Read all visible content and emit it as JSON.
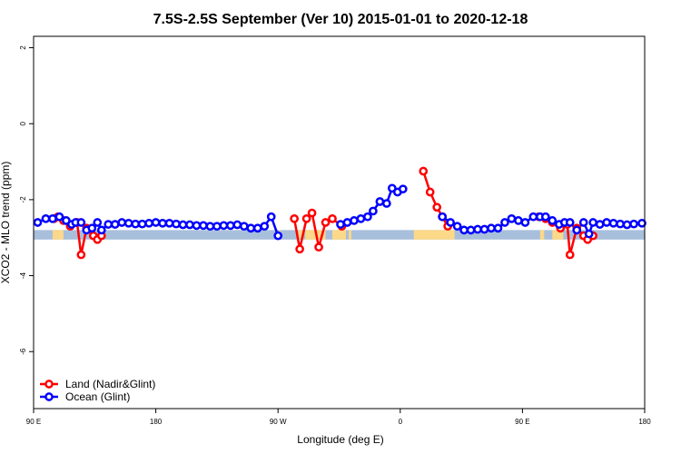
{
  "chart_data": {
    "type": "line",
    "title": "7.5S-2.5S September (Ver 10)   2015-01-01 to 2020-12-18",
    "xlabel": "Longitude (deg E)",
    "ylabel": "XCO2 - MLO trend (ppm)",
    "xlim": [
      90,
      540
    ],
    "ylim": [
      -7.5,
      2.3
    ],
    "x_ticks": [
      {
        "value": 90,
        "label": "90 E"
      },
      {
        "value": 180,
        "label": "180"
      },
      {
        "value": 270,
        "label": "90 W"
      },
      {
        "value": 360,
        "label": "0"
      },
      {
        "value": 450,
        "label": "90 E"
      },
      {
        "value": 540,
        "label": "180"
      }
    ],
    "y_ticks": [
      {
        "value": 2,
        "label": "2"
      },
      {
        "value": 0,
        "label": "0"
      },
      {
        "value": -2,
        "label": "-2"
      },
      {
        "value": -4,
        "label": "-4"
      },
      {
        "value": -6,
        "label": "-6"
      }
    ],
    "grid": false,
    "legend_position": "bottom-left",
    "land_band": {
      "ymin": -3.05,
      "ymax": -2.8,
      "ocean_color": "#a8bfdc",
      "land_color": "#fcd889",
      "land_segments": [
        [
          104,
          106
        ],
        [
          106,
          108
        ],
        [
          108,
          112
        ],
        [
          271,
          272
        ],
        [
          285,
          288
        ],
        [
          290,
          305
        ],
        [
          310,
          320
        ],
        [
          322,
          324
        ],
        [
          370,
          400
        ],
        [
          463,
          466
        ],
        [
          472,
          480
        ]
      ]
    },
    "series": [
      {
        "name": "Land (Nadir&Glint)",
        "color": "#ff0000",
        "segments": [
          [
            [
              105,
              -2.5
            ],
            [
              108,
              -2.45
            ],
            [
              112,
              -2.55
            ],
            [
              117,
              -2.7
            ],
            [
              122,
              -2.6
            ],
            [
              125,
              -3.45
            ],
            [
              129,
              -2.75
            ],
            [
              134,
              -2.95
            ],
            [
              137,
              -3.05
            ],
            [
              140,
              -2.95
            ]
          ],
          [
            [
              282,
              -2.5
            ],
            [
              286,
              -3.3
            ],
            [
              291,
              -2.5
            ],
            [
              295,
              -2.35
            ],
            [
              300,
              -3.25
            ],
            [
              305,
              -2.6
            ],
            [
              310,
              -2.5
            ],
            [
              317,
              -2.7
            ]
          ],
          [
            [
              377,
              -1.25
            ],
            [
              382,
              -1.8
            ],
            [
              387,
              -2.2
            ],
            [
              391,
              -2.45
            ],
            [
              395,
              -2.7
            ]
          ],
          [
            [
              462,
              -2.45
            ],
            [
              467,
              -2.5
            ],
            [
              472,
              -2.6
            ],
            [
              478,
              -2.75
            ],
            [
              483,
              -2.65
            ],
            [
              485,
              -3.45
            ],
            [
              490,
              -2.75
            ],
            [
              495,
              -2.95
            ],
            [
              498,
              -3.05
            ],
            [
              502,
              -2.95
            ]
          ]
        ]
      },
      {
        "name": "Ocean (Glint)",
        "color": "#0000ff",
        "segments": [
          [
            [
              93,
              -2.6
            ],
            [
              99,
              -2.5
            ],
            [
              104,
              -2.5
            ],
            [
              109,
              -2.45
            ],
            [
              114,
              -2.55
            ],
            [
              118,
              -2.65
            ],
            [
              121,
              -2.6
            ],
            [
              125,
              -2.6
            ],
            [
              129,
              -2.8
            ],
            [
              133,
              -2.75
            ],
            [
              137,
              -2.6
            ],
            [
              140,
              -2.8
            ],
            [
              145,
              -2.65
            ],
            [
              150,
              -2.65
            ],
            [
              155,
              -2.6
            ],
            [
              160,
              -2.62
            ],
            [
              165,
              -2.64
            ],
            [
              170,
              -2.64
            ],
            [
              175,
              -2.62
            ],
            [
              180,
              -2.6
            ],
            [
              185,
              -2.62
            ],
            [
              190,
              -2.62
            ],
            [
              195,
              -2.64
            ],
            [
              200,
              -2.66
            ],
            [
              205,
              -2.66
            ],
            [
              210,
              -2.68
            ],
            [
              215,
              -2.68
            ],
            [
              220,
              -2.7
            ],
            [
              225,
              -2.7
            ],
            [
              230,
              -2.68
            ],
            [
              235,
              -2.68
            ],
            [
              240,
              -2.66
            ],
            [
              245,
              -2.7
            ],
            [
              250,
              -2.75
            ],
            [
              255,
              -2.75
            ],
            [
              260,
              -2.7
            ],
            [
              265,
              -2.45
            ],
            [
              270,
              -2.95
            ]
          ],
          [
            [
              316,
              -2.65
            ],
            [
              321,
              -2.6
            ],
            [
              326,
              -2.55
            ],
            [
              331,
              -2.5
            ],
            [
              336,
              -2.45
            ],
            [
              340,
              -2.3
            ],
            [
              345,
              -2.05
            ],
            [
              350,
              -2.1
            ],
            [
              354,
              -1.7
            ],
            [
              358,
              -1.8
            ],
            [
              362,
              -1.72
            ]
          ],
          [
            [
              391,
              -2.45
            ],
            [
              397,
              -2.6
            ],
            [
              402,
              -2.7
            ],
            [
              407,
              -2.8
            ],
            [
              412,
              -2.8
            ],
            [
              417,
              -2.78
            ],
            [
              422,
              -2.78
            ],
            [
              427,
              -2.75
            ],
            [
              432,
              -2.75
            ],
            [
              437,
              -2.6
            ],
            [
              442,
              -2.5
            ],
            [
              447,
              -2.55
            ],
            [
              452,
              -2.6
            ],
            [
              458,
              -2.45
            ],
            [
              463,
              -2.45
            ],
            [
              467,
              -2.45
            ],
            [
              472,
              -2.55
            ],
            [
              477,
              -2.65
            ],
            [
              481,
              -2.6
            ],
            [
              485,
              -2.6
            ],
            [
              490,
              -2.8
            ],
            [
              495,
              -2.6
            ],
            [
              499,
              -2.9
            ],
            [
              502,
              -2.6
            ],
            [
              507,
              -2.65
            ],
            [
              512,
              -2.6
            ],
            [
              517,
              -2.62
            ],
            [
              522,
              -2.64
            ],
            [
              527,
              -2.66
            ],
            [
              532,
              -2.64
            ],
            [
              538,
              -2.62
            ]
          ]
        ]
      }
    ]
  }
}
